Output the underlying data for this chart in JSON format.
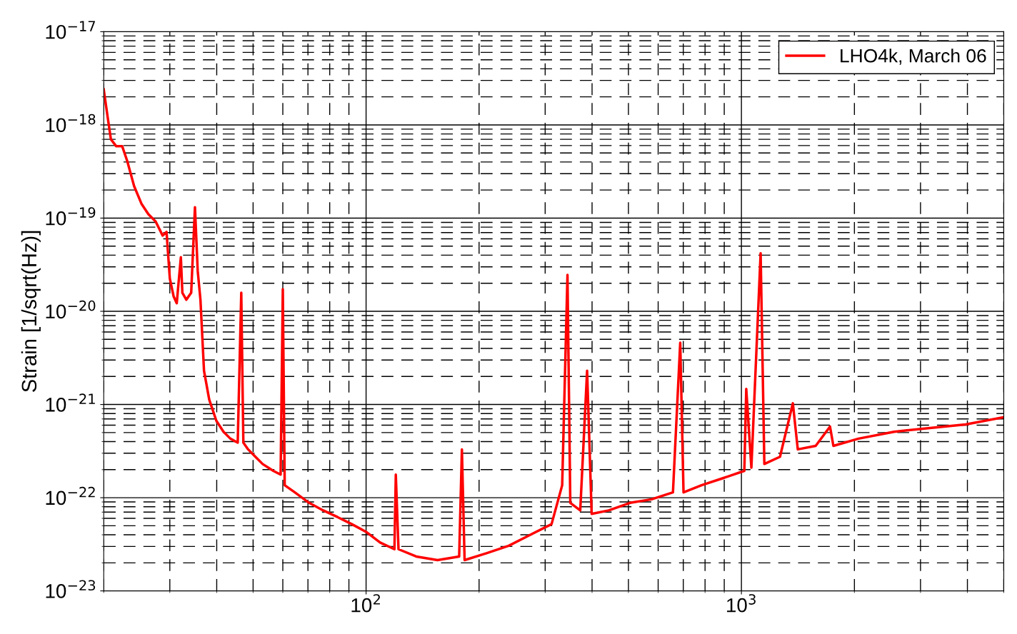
{
  "chart_data": {
    "type": "line",
    "ylabel": "Strain [1/sqrt(Hz)]",
    "log": "xy",
    "grid": true,
    "legend": "top right",
    "marker": "none",
    "line_style": "solid",
    "xlim": [
      20,
      5000
    ],
    "ylim": [
      1e-23,
      1e-17
    ],
    "xticks": [
      {
        "value": 100,
        "label": "10$^{2}$"
      },
      {
        "value": 1000,
        "label": "10$^{3}$"
      }
    ],
    "yticks": [
      {
        "value": 1e-23,
        "label": "10$^{−23}$"
      },
      {
        "value": 1e-22,
        "label": "10$^{−22}$"
      },
      {
        "value": 1e-21,
        "label": "10$^{−21}$"
      },
      {
        "value": 1e-20,
        "label": "10$^{−20}$"
      },
      {
        "value": 1e-19,
        "label": "10$^{−19}$"
      },
      {
        "value": 1e-18,
        "label": "10$^{−18}$"
      },
      {
        "value": 1e-17,
        "label": "10$^{−17}$"
      }
    ],
    "series": [
      {
        "name": "LHO4k, March 06",
        "color": "#ff0000",
        "x": [
          20,
          20.5,
          20.9,
          21.6,
          22.4,
          23.1,
          24.1,
          25.2,
          26.3,
          27.5,
          28.7,
          29.4,
          30.0,
          30.7,
          31.3,
          32.1,
          32.4,
          33.2,
          34.2,
          35.0,
          35.6,
          36.2,
          37.0,
          38.2,
          39.9,
          41.7,
          43.5,
          45.5,
          46.5,
          47.1,
          48.5,
          50.7,
          53.0,
          56.6,
          59.2,
          60.0,
          60.7,
          64.6,
          70.5,
          76.9,
          83.9,
          91.6,
          100,
          109,
          119,
          120,
          122,
          136,
          155,
          177,
          180,
          183,
          210,
          240,
          274,
          312,
          333,
          344,
          350,
          372,
          388,
          399,
          443,
          505,
          576,
          657,
          687,
          701,
          783,
          893,
          1018,
          1030,
          1063,
          1125,
          1151,
          1267,
          1371,
          1413,
          1577,
          1722,
          1758,
          2051,
          2552,
          3177,
          3955,
          5000
        ],
        "values": [
          2.4e-18,
          1.19e-18,
          7e-19,
          5.9e-19,
          5.9e-19,
          4.1e-19,
          2.2e-19,
          1.43e-19,
          1.1e-19,
          9.2e-20,
          6.5e-20,
          7.1e-20,
          2.25e-20,
          1.45e-20,
          1.22e-20,
          3.8e-20,
          1.58e-20,
          1.33e-20,
          1.58e-20,
          1.31e-19,
          2.7e-20,
          1.33e-20,
          2.3e-21,
          1.13e-21,
          6.7e-22,
          5.1e-22,
          4.3e-22,
          3.9e-22,
          1.58e-20,
          3.9e-22,
          3.3e-22,
          2.75e-22,
          2.3e-22,
          1.94e-22,
          1.77e-22,
          1.73e-20,
          1.36e-22,
          1.14e-22,
          8.8e-23,
          7.3e-23,
          6.2e-23,
          5.2e-23,
          4.3e-23,
          3.3e-23,
          2.8e-23,
          1.77e-22,
          2.8e-23,
          2.34e-23,
          2.14e-23,
          2.34e-23,
          3.3e-22,
          2.14e-23,
          2.55e-23,
          3.05e-23,
          4e-23,
          5.2e-23,
          1.36e-22,
          2.46e-20,
          8.8e-23,
          7.3e-23,
          2.3e-21,
          6.7e-23,
          7.3e-23,
          8.8e-23,
          9.6e-23,
          1.14e-22,
          4.6e-21,
          1.14e-22,
          1.36e-22,
          1.62e-22,
          1.94e-22,
          1.47e-21,
          2.1e-22,
          4.2e-20,
          2.3e-22,
          2.75e-22,
          1.03e-21,
          3.3e-22,
          3.6e-22,
          5.8e-22,
          3.6e-22,
          4.3e-22,
          5.1e-22,
          5.6e-22,
          6.1e-22,
          7.3e-22
        ]
      }
    ]
  }
}
